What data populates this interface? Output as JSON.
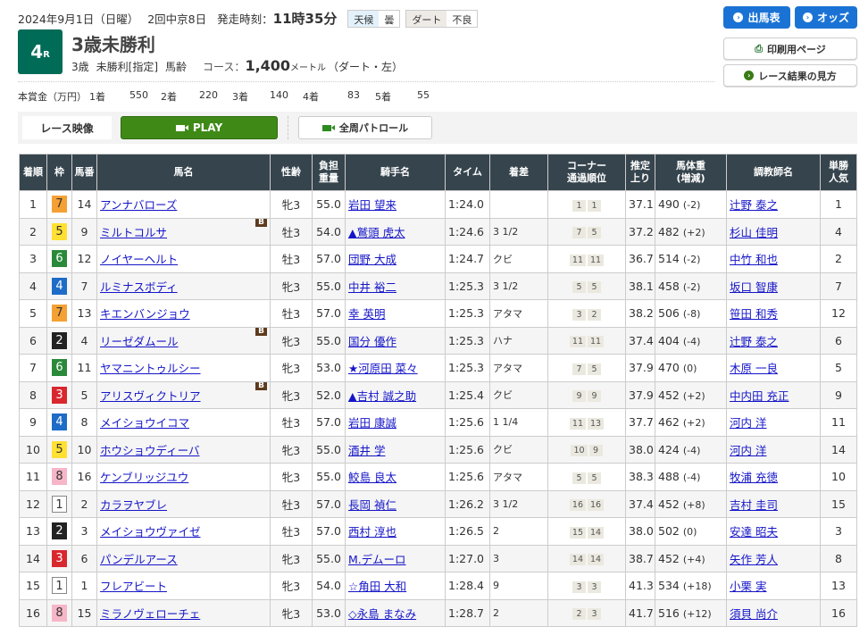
{
  "header": {
    "date": "2024年9月1日（日曜）",
    "meeting": "2回中京8日",
    "start_label": "発走時刻：",
    "start_time": "11時35分",
    "weather_label": "天候",
    "weather": "曇",
    "track_label": "ダート",
    "track_cond": "不良",
    "race_no": "4",
    "race_suffix": "R",
    "race_name": "3歳未勝利",
    "age": "3歳",
    "cls": "未勝利[指定]",
    "weight_rule": "馬齢",
    "course_label": "コース：",
    "distance": "1,400",
    "unit": "メートル",
    "course_detail": "（ダート・左）"
  },
  "prize": {
    "label": "本賞金（万円）",
    "items": [
      {
        "p": "1着",
        "v": "550"
      },
      {
        "p": "2着",
        "v": "220"
      },
      {
        "p": "3着",
        "v": "140"
      },
      {
        "p": "4着",
        "v": "83"
      },
      {
        "p": "5着",
        "v": "55"
      }
    ]
  },
  "buttons": {
    "entries": "出馬表",
    "odds": "オッズ",
    "print": "印刷用ページ",
    "howto": "レース結果の見方"
  },
  "video": {
    "label": "レース映像",
    "play": "PLAY",
    "patrol": "全周パトロール"
  },
  "frame_colors": {
    "1": "#ffffff",
    "2": "#222222",
    "3": "#d9272e",
    "4": "#1e6cc8",
    "5": "#ffe033",
    "6": "#2a8a3a",
    "7": "#f5a033",
    "8": "#f7b6c8"
  },
  "columns": [
    "着順",
    "枠",
    "馬番",
    "馬名",
    "性齢",
    "負担重量",
    "騎手名",
    "タイム",
    "着差",
    "コーナー通過順位",
    "推定上り",
    "馬体重(増減)",
    "調教師名",
    "単勝人気"
  ],
  "rows": [
    {
      "pos": "1",
      "waku": "7",
      "num": "14",
      "horse": "アンナバローズ",
      "b": "",
      "sex": "牝3",
      "wt": "55.0",
      "jockey": "岩田 望来",
      "time": "1:24.0",
      "margin": "",
      "c1": "1",
      "c2": "1",
      "f3": "37.1",
      "bw": "490",
      "bd": "(-2)",
      "trainer": "辻野 泰之",
      "pop": "1"
    },
    {
      "pos": "2",
      "waku": "5",
      "num": "9",
      "horse": "ミルトコルサ",
      "b": "B",
      "sex": "牡3",
      "wt": "54.0",
      "jockey": "▲鷲頭 虎太",
      "time": "1:24.6",
      "margin": "3 1/2",
      "c1": "7",
      "c2": "5",
      "f3": "37.2",
      "bw": "482",
      "bd": "(+2)",
      "trainer": "杉山 佳明",
      "pop": "4"
    },
    {
      "pos": "3",
      "waku": "6",
      "num": "12",
      "horse": "ノイヤーヘルト",
      "b": "",
      "sex": "牡3",
      "wt": "57.0",
      "jockey": "団野 大成",
      "time": "1:24.7",
      "margin": "クビ",
      "c1": "11",
      "c2": "11",
      "f3": "36.7",
      "bw": "514",
      "bd": "(-2)",
      "trainer": "中竹 和也",
      "pop": "2"
    },
    {
      "pos": "4",
      "waku": "4",
      "num": "7",
      "horse": "ルミナスボディ",
      "b": "",
      "sex": "牝3",
      "wt": "55.0",
      "jockey": "中井 裕二",
      "time": "1:25.3",
      "margin": "3 1/2",
      "c1": "5",
      "c2": "5",
      "f3": "38.1",
      "bw": "458",
      "bd": "(-2)",
      "trainer": "坂口 智康",
      "pop": "7"
    },
    {
      "pos": "5",
      "waku": "7",
      "num": "13",
      "horse": "キエンバンジョウ",
      "b": "",
      "sex": "牡3",
      "wt": "57.0",
      "jockey": "幸 英明",
      "time": "1:25.3",
      "margin": "アタマ",
      "c1": "3",
      "c2": "2",
      "f3": "38.2",
      "bw": "506",
      "bd": "(-8)",
      "trainer": "笹田 和秀",
      "pop": "12"
    },
    {
      "pos": "6",
      "waku": "2",
      "num": "4",
      "horse": "リーゼダムール",
      "b": "B",
      "sex": "牝3",
      "wt": "55.0",
      "jockey": "国分 優作",
      "time": "1:25.3",
      "margin": "ハナ",
      "c1": "11",
      "c2": "11",
      "f3": "37.4",
      "bw": "404",
      "bd": "(-4)",
      "trainer": "辻野 泰之",
      "pop": "6"
    },
    {
      "pos": "7",
      "waku": "6",
      "num": "11",
      "horse": "ヤマニントゥルシー",
      "b": "",
      "sex": "牝3",
      "wt": "53.0",
      "jockey": "★河原田 菜々",
      "time": "1:25.3",
      "margin": "アタマ",
      "c1": "7",
      "c2": "5",
      "f3": "37.9",
      "bw": "470",
      "bd": "(0)",
      "trainer": "木原 一良",
      "pop": "5"
    },
    {
      "pos": "8",
      "waku": "3",
      "num": "5",
      "horse": "アリスヴィクトリア",
      "b": "B",
      "sex": "牝3",
      "wt": "52.0",
      "jockey": "▲吉村 誠之助",
      "time": "1:25.4",
      "margin": "クビ",
      "c1": "9",
      "c2": "9",
      "f3": "37.9",
      "bw": "452",
      "bd": "(+2)",
      "trainer": "中内田 充正",
      "pop": "9"
    },
    {
      "pos": "9",
      "waku": "4",
      "num": "8",
      "horse": "メイショウイコマ",
      "b": "",
      "sex": "牡3",
      "wt": "57.0",
      "jockey": "岩田 康誠",
      "time": "1:25.6",
      "margin": "1 1/4",
      "c1": "11",
      "c2": "13",
      "f3": "37.7",
      "bw": "462",
      "bd": "(+2)",
      "trainer": "河内 洋",
      "pop": "11"
    },
    {
      "pos": "10",
      "waku": "5",
      "num": "10",
      "horse": "ホウショウディーバ",
      "b": "",
      "sex": "牝3",
      "wt": "55.0",
      "jockey": "酒井 学",
      "time": "1:25.6",
      "margin": "クビ",
      "c1": "10",
      "c2": "9",
      "f3": "38.0",
      "bw": "424",
      "bd": "(-4)",
      "trainer": "河内 洋",
      "pop": "14"
    },
    {
      "pos": "11",
      "waku": "8",
      "num": "16",
      "horse": "ケンブリッジユウ",
      "b": "",
      "sex": "牝3",
      "wt": "55.0",
      "jockey": "鮫島 良太",
      "time": "1:25.6",
      "margin": "アタマ",
      "c1": "5",
      "c2": "5",
      "f3": "38.3",
      "bw": "488",
      "bd": "(-4)",
      "trainer": "牧浦 充徳",
      "pop": "10"
    },
    {
      "pos": "12",
      "waku": "1",
      "num": "2",
      "horse": "カラヲヤブレ",
      "b": "",
      "sex": "牡3",
      "wt": "57.0",
      "jockey": "長岡 禎仁",
      "time": "1:26.2",
      "margin": "3 1/2",
      "c1": "16",
      "c2": "16",
      "f3": "37.4",
      "bw": "452",
      "bd": "(+8)",
      "trainer": "吉村 圭司",
      "pop": "15"
    },
    {
      "pos": "13",
      "waku": "2",
      "num": "3",
      "horse": "メイショウヴァイゼ",
      "b": "",
      "sex": "牡3",
      "wt": "57.0",
      "jockey": "西村 淳也",
      "time": "1:26.5",
      "margin": "2",
      "c1": "15",
      "c2": "14",
      "f3": "38.0",
      "bw": "502",
      "bd": "(0)",
      "trainer": "安達 昭夫",
      "pop": "3"
    },
    {
      "pos": "14",
      "waku": "3",
      "num": "6",
      "horse": "パンデルアース",
      "b": "",
      "sex": "牝3",
      "wt": "55.0",
      "jockey": "M.デムーロ",
      "time": "1:27.0",
      "margin": "3",
      "c1": "14",
      "c2": "14",
      "f3": "38.7",
      "bw": "452",
      "bd": "(+4)",
      "trainer": "矢作 芳人",
      "pop": "8"
    },
    {
      "pos": "15",
      "waku": "1",
      "num": "1",
      "horse": "フレアビート",
      "b": "",
      "sex": "牝3",
      "wt": "54.0",
      "jockey": "☆角田 大和",
      "time": "1:28.4",
      "margin": "9",
      "c1": "3",
      "c2": "3",
      "f3": "41.3",
      "bw": "534",
      "bd": "(+18)",
      "trainer": "小栗 実",
      "pop": "13"
    },
    {
      "pos": "16",
      "waku": "8",
      "num": "15",
      "horse": "ミラノヴェローチェ",
      "b": "",
      "sex": "牝3",
      "wt": "53.0",
      "jockey": "◇永島 まなみ",
      "time": "1:28.7",
      "margin": "2",
      "c1": "2",
      "c2": "3",
      "f3": "41.7",
      "bw": "516",
      "bd": "(+12)",
      "trainer": "須貝 尚介",
      "pop": "16"
    }
  ]
}
